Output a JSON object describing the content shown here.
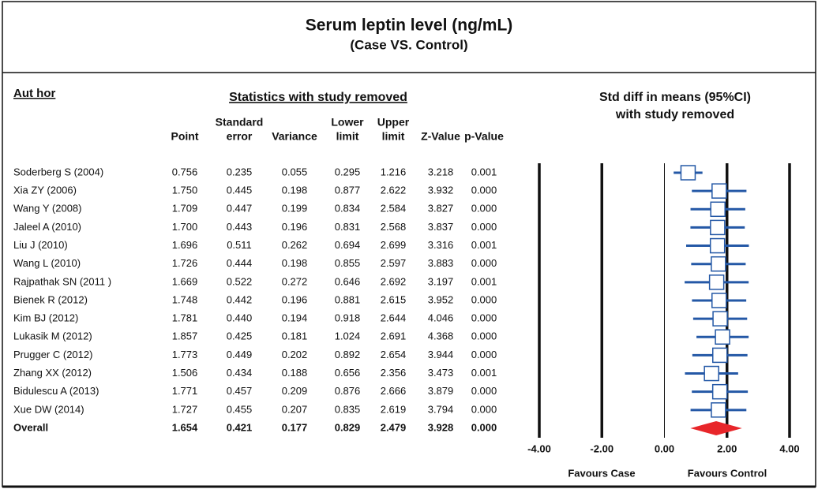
{
  "chart_data": {
    "type": "forest",
    "title": "Serum leptin level (ng/mL)",
    "subtitle": "(Case VS. Control)",
    "author_header": "Aut hor",
    "stats_header": "Statistics with study removed",
    "plot_header": "Std diff in means (95%CI)",
    "plot_subheader": "with study removed",
    "columns": [
      [
        "Point"
      ],
      [
        "Standard",
        "error"
      ],
      [
        "Variance"
      ],
      [
        "Lower",
        "limit"
      ],
      [
        "Upper",
        "limit"
      ],
      [
        "Z-Value"
      ],
      [
        "p-Value"
      ]
    ],
    "color": "#2458a6",
    "overall_color": "#e8262a",
    "rows": [
      {
        "name": "Soderberg S (2004)",
        "values": [
          0.756,
          0.235,
          0.055,
          0.295,
          1.216,
          3.218,
          0.001
        ],
        "value_labels": [
          "0.756",
          "0.235",
          "0.055",
          "0.295",
          "1.216",
          "3.218",
          "0.001"
        ]
      },
      {
        "name": "Xia ZY (2006)",
        "values": [
          1.75,
          0.445,
          0.198,
          0.877,
          2.622,
          3.932,
          0.0
        ],
        "value_labels": [
          "1.750",
          "0.445",
          "0.198",
          "0.877",
          "2.622",
          "3.932",
          "0.000"
        ]
      },
      {
        "name": "Wang Y (2008)",
        "values": [
          1.709,
          0.447,
          0.199,
          0.834,
          2.584,
          3.827,
          0.0
        ],
        "value_labels": [
          "1.709",
          "0.447",
          "0.199",
          "0.834",
          "2.584",
          "3.827",
          "0.000"
        ]
      },
      {
        "name": "Jaleel A (2010)",
        "values": [
          1.7,
          0.443,
          0.196,
          0.831,
          2.568,
          3.837,
          0.0
        ],
        "value_labels": [
          "1.700",
          "0.443",
          "0.196",
          "0.831",
          "2.568",
          "3.837",
          "0.000"
        ]
      },
      {
        "name": "Liu J (2010)",
        "values": [
          1.696,
          0.511,
          0.262,
          0.694,
          2.699,
          3.316,
          0.001
        ],
        "value_labels": [
          "1.696",
          "0.511",
          "0.262",
          "0.694",
          "2.699",
          "3.316",
          "0.001"
        ]
      },
      {
        "name": "Wang L (2010)",
        "values": [
          1.726,
          0.444,
          0.198,
          0.855,
          2.597,
          3.883,
          0.0
        ],
        "value_labels": [
          "1.726",
          "0.444",
          "0.198",
          "0.855",
          "2.597",
          "3.883",
          "0.000"
        ]
      },
      {
        "name": "Rajpathak SN (2011 )",
        "values": [
          1.669,
          0.522,
          0.272,
          0.646,
          2.692,
          3.197,
          0.001
        ],
        "value_labels": [
          "1.669",
          "0.522",
          "0.272",
          "0.646",
          "2.692",
          "3.197",
          "0.001"
        ]
      },
      {
        "name": "Bienek R (2012)",
        "values": [
          1.748,
          0.442,
          0.196,
          0.881,
          2.615,
          3.952,
          0.0
        ],
        "value_labels": [
          "1.748",
          "0.442",
          "0.196",
          "0.881",
          "2.615",
          "3.952",
          "0.000"
        ]
      },
      {
        "name": "Kim BJ (2012)",
        "values": [
          1.781,
          0.44,
          0.194,
          0.918,
          2.644,
          4.046,
          0.0
        ],
        "value_labels": [
          "1.781",
          "0.440",
          "0.194",
          "0.918",
          "2.644",
          "4.046",
          "0.000"
        ]
      },
      {
        "name": "Lukasik M (2012)",
        "values": [
          1.857,
          0.425,
          0.181,
          1.024,
          2.691,
          4.368,
          0.0
        ],
        "value_labels": [
          "1.857",
          "0.425",
          "0.181",
          "1.024",
          "2.691",
          "4.368",
          "0.000"
        ]
      },
      {
        "name": "Prugger C (2012)",
        "values": [
          1.773,
          0.449,
          0.202,
          0.892,
          2.654,
          3.944,
          0.0
        ],
        "value_labels": [
          "1.773",
          "0.449",
          "0.202",
          "0.892",
          "2.654",
          "3.944",
          "0.000"
        ]
      },
      {
        "name": "Zhang XX (2012)",
        "values": [
          1.506,
          0.434,
          0.188,
          0.656,
          2.356,
          3.473,
          0.001
        ],
        "value_labels": [
          "1.506",
          "0.434",
          "0.188",
          "0.656",
          "2.356",
          "3.473",
          "0.001"
        ]
      },
      {
        "name": "Bidulescu A (2013)",
        "values": [
          1.771,
          0.457,
          0.209,
          0.876,
          2.666,
          3.879,
          0.0
        ],
        "value_labels": [
          "1.771",
          "0.457",
          "0.209",
          "0.876",
          "2.666",
          "3.879",
          "0.000"
        ]
      },
      {
        "name": "Xue DW (2014)",
        "values": [
          1.727,
          0.455,
          0.207,
          0.835,
          2.619,
          3.794,
          0.0
        ],
        "value_labels": [
          "1.727",
          "0.455",
          "0.207",
          "0.835",
          "2.619",
          "3.794",
          "0.000"
        ]
      }
    ],
    "overall": {
      "name": "Overall",
      "values": [
        1.654,
        0.421,
        0.177,
        0.829,
        2.479,
        3.928,
        0.0
      ],
      "value_labels": [
        "1.654",
        "0.421",
        "0.177",
        "0.829",
        "2.479",
        "3.928",
        "0.000"
      ]
    },
    "xlim": [
      -4,
      4
    ],
    "xticks": [
      {
        "value": -4,
        "label": "-4.00"
      },
      {
        "value": -2,
        "label": "-2.00"
      },
      {
        "value": 0,
        "label": "0.00"
      },
      {
        "value": 2,
        "label": "2.00"
      },
      {
        "value": 4,
        "label": "4.00"
      }
    ],
    "favours_left": "Favours Case",
    "favours_right": "Favours Control"
  }
}
